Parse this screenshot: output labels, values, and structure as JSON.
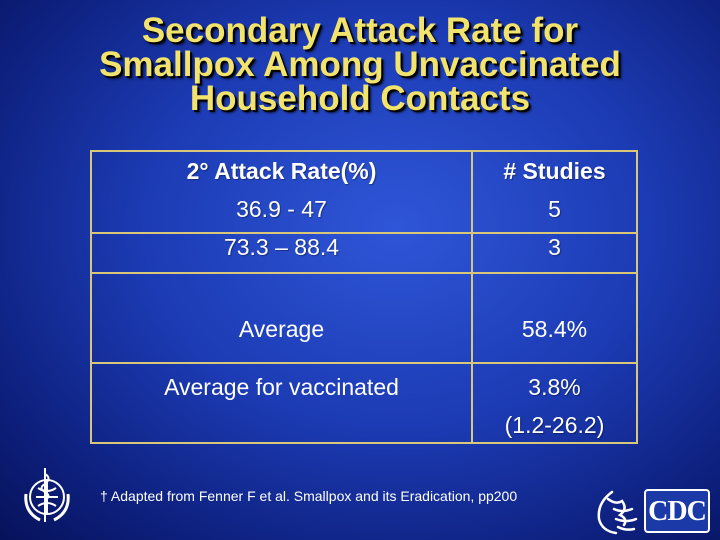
{
  "title_lines": [
    "Secondary Attack Rate for",
    "Smallpox Among Unvaccinated",
    "Household Contacts"
  ],
  "table": {
    "col1_header": "2° Attack Rate(%)",
    "col2_header": "# Studies",
    "rows": [
      {
        "rate": "36.9 - 47",
        "studies": "5"
      },
      {
        "rate": "73.3 – 88.4",
        "studies": "3"
      }
    ],
    "average_label": "Average",
    "average_value": "58.4%",
    "vaccinated_label": "Average for vaccinated",
    "vaccinated_value": "3.8%",
    "vaccinated_range": "(1.2-26.2)"
  },
  "footnote": "† Adapted from Fenner F et al. Smallpox and its Eradication, pp200",
  "logos": {
    "who": "who-emblem-icon",
    "hhs": "hhs-eagle-icon",
    "cdc": "CDC"
  },
  "colors": {
    "title": "#f2e36c",
    "table_border": "#d8c77a",
    "background": "#1c3bb4"
  }
}
